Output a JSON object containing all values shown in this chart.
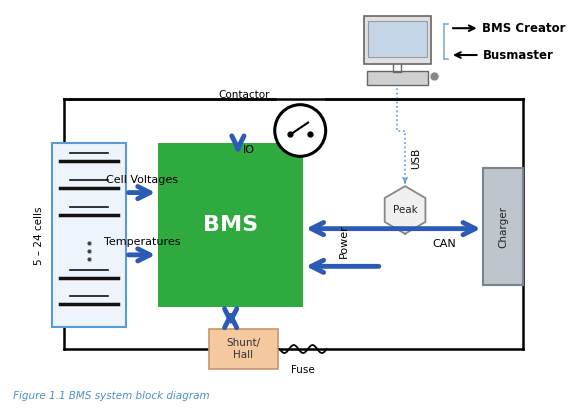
{
  "bg_color": "#ffffff",
  "title": "Figure 1.1 BMS system block diagram",
  "title_color": "#4A90C4",
  "title_style": "italic",
  "bms_color": "#2EAA3F",
  "bms_text": "BMS",
  "bms_text_color": "#ffffff",
  "battery_border_color": "#5B9BD5",
  "battery_fill_color": "#EEF4FB",
  "shunt_color": "#F5C9A0",
  "shunt_border_color": "#C8956A",
  "charger_color": "#BFC5CC",
  "charger_border_color": "#7A8490",
  "arrow_color": "#2B5BB5",
  "line_color": "#000000",
  "usb_line_color": "#5B9BD5",
  "label_color": "#000000",
  "cells_label": "5 – 24 cells",
  "cell_voltages_label": "Cell Voltages",
  "temperatures_label": "Temperatures",
  "contactor_label": "Contactor",
  "io_label": "IO",
  "power_label": "Power",
  "can_label": "CAN",
  "usb_label": "USB",
  "shunt_label": "Shunt/\nHall",
  "fuse_label": "Fuse",
  "peak_label": "Peak",
  "charger_label": "Charger",
  "bms_creator_label": "BMS Creator",
  "busmaster_label": "Busmaster",
  "arrow_lw": 3.5,
  "arrow_mutation_scale": 22
}
